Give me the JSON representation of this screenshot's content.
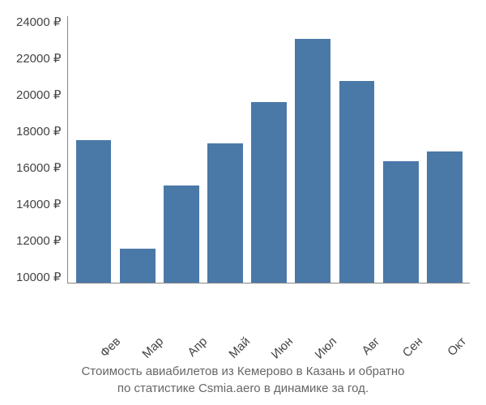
{
  "chart": {
    "type": "bar",
    "categories": [
      "Фев",
      "Мар",
      "Апр",
      "Май",
      "Июн",
      "Июл",
      "Авг",
      "Сен",
      "Окт"
    ],
    "values": [
      17500,
      11800,
      15100,
      17300,
      19500,
      22800,
      20600,
      16400,
      16900
    ],
    "bar_color": "#4a79a8",
    "background_color": "#ffffff",
    "axis_color": "#888888",
    "text_color": "#444444",
    "ylim": [
      10000,
      24000
    ],
    "ytick_step": 2000,
    "yticks": [
      "24000 ₽",
      "22000 ₽",
      "20000 ₽",
      "18000 ₽",
      "16000 ₽",
      "14000 ₽",
      "12000 ₽",
      "10000 ₽"
    ],
    "ytick_values": [
      24000,
      22000,
      20000,
      18000,
      16000,
      14000,
      12000,
      10000
    ],
    "bar_width_pct": 9,
    "caption_line1": "Стоимость авиабилетов из Кемерово в Казань и обратно",
    "caption_line2": "по статистике Csmia.aero в динамике за год.",
    "caption_color": "#666666",
    "tick_fontsize": 15,
    "caption_fontsize": 15,
    "xlabel_rotation_deg": -45
  }
}
